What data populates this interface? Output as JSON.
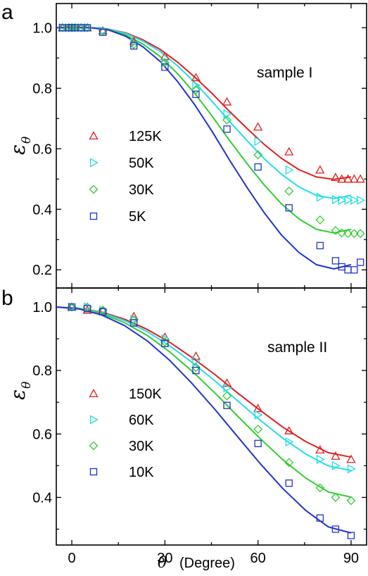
{
  "chart_data": {
    "type": "scatter",
    "xlabel_symbol": "θ",
    "xlabel_unit": "(Degree)",
    "ylabel_symbol": "ε",
    "ylabel_sub": "θ",
    "xlim": [
      -5,
      95
    ],
    "xticks": [
      0,
      30,
      60,
      90
    ],
    "xtick_labels": [
      "0",
      "30",
      "60",
      "90"
    ],
    "panels": [
      {
        "letter": "a",
        "sample_label": "sample I",
        "ylim": [
          0.14,
          1.08
        ],
        "yticks": [
          0.2,
          0.4,
          0.6,
          0.8,
          1.0
        ],
        "ytick_labels": [
          "0.2",
          "0.4",
          "0.6",
          "0.8",
          "1.0"
        ],
        "series": [
          {
            "name": "125K",
            "marker": "triangle-up",
            "color": "#e02020",
            "x": [
              -3,
              -1,
              0,
              1,
              3,
              5,
              10,
              20,
              30,
              40,
              50,
              60,
              70,
              80,
              85,
              87,
              89,
              91,
              93
            ],
            "y": [
              1.0,
              1.0,
              1.0,
              1.0,
              1.0,
              1.0,
              0.99,
              0.955,
              0.905,
              0.835,
              0.755,
              0.672,
              0.59,
              0.53,
              0.505,
              0.5,
              0.5,
              0.5,
              0.5
            ],
            "fit": [
              1.0,
              1.0,
              1.0,
              0.9955,
              0.983,
              0.96,
              0.928,
              0.886,
              0.836,
              0.782,
              0.723,
              0.667,
              0.614,
              0.568,
              0.531,
              0.507,
              0.499,
              0.507
            ]
          },
          {
            "name": "50K",
            "marker": "triangle-right",
            "color": "#22dde8",
            "x": [
              -3,
              -1,
              0,
              1,
              3,
              5,
              10,
              20,
              30,
              40,
              50,
              60,
              70,
              80,
              85,
              87,
              89,
              91,
              93
            ],
            "y": [
              1.0,
              1.0,
              1.0,
              1.0,
              1.0,
              1.0,
              0.99,
              0.95,
              0.885,
              0.81,
              0.715,
              0.625,
              0.53,
              0.44,
              0.432,
              0.43,
              0.43,
              0.43,
              0.43
            ],
            "fit": [
              1.0,
              1.0,
              1.0,
              0.995,
              0.981,
              0.956,
              0.921,
              0.874,
              0.818,
              0.756,
              0.69,
              0.627,
              0.567,
              0.515,
              0.474,
              0.446,
              0.436,
              0.446
            ]
          },
          {
            "name": "30K",
            "marker": "diamond",
            "color": "#33cc33",
            "x": [
              -3,
              -1,
              0,
              1,
              3,
              5,
              10,
              20,
              30,
              40,
              50,
              60,
              70,
              80,
              85,
              87,
              89,
              91,
              93
            ],
            "y": [
              1.0,
              1.0,
              1.0,
              1.0,
              1.0,
              1.0,
              0.99,
              0.945,
              0.885,
              0.795,
              0.695,
              0.58,
              0.46,
              0.365,
              0.33,
              0.322,
              0.32,
              0.32,
              0.32
            ],
            "fit": [
              1.0,
              1.0,
              1.0,
              0.994,
              0.976,
              0.946,
              0.904,
              0.848,
              0.782,
              0.707,
              0.627,
              0.551,
              0.48,
              0.417,
              0.368,
              0.334,
              0.322,
              0.334
            ]
          },
          {
            "name": "5K",
            "marker": "square",
            "color": "#2233cc",
            "x": [
              -3,
              -1,
              0,
              1,
              3,
              5,
              10,
              20,
              30,
              40,
              50,
              60,
              70,
              80,
              85,
              87,
              89,
              91,
              93
            ],
            "y": [
              1.0,
              1.0,
              1.0,
              1.0,
              1.0,
              1.0,
              0.985,
              0.94,
              0.87,
              0.78,
              0.665,
              0.54,
              0.405,
              0.28,
              0.23,
              0.21,
              0.2,
              0.2,
              0.225
            ],
            "fit": [
              1.0,
              1.0,
              1.0,
              0.993,
              0.972,
              0.937,
              0.888,
              0.822,
              0.744,
              0.656,
              0.562,
              0.472,
              0.388,
              0.314,
              0.257,
              0.217,
              0.203,
              0.217
            ]
          }
        ],
        "fit_x": [
          -5,
          0,
          5,
          10,
          15,
          20,
          25,
          30,
          35,
          40,
          45,
          50,
          55,
          60,
          65,
          70,
          75,
          80
        ],
        "legend": [
          "125K",
          "50K",
          "30K",
          "5K"
        ]
      },
      {
        "letter": "b",
        "sample_label": "sample II",
        "ylim": [
          0.25,
          1.06
        ],
        "yticks": [
          0.4,
          0.6,
          0.8,
          1.0
        ],
        "ytick_labels": [
          "0.4",
          "0.6",
          "0.8",
          "1.0"
        ],
        "series": [
          {
            "name": "150K",
            "marker": "triangle-up",
            "color": "#e02020",
            "x": [
              0,
              5,
              10,
              20,
              30,
              40,
              50,
              60,
              70,
              80,
              85,
              90
            ],
            "y": [
              1.0,
              0.99,
              0.99,
              0.97,
              0.905,
              0.845,
              0.76,
              0.68,
              0.61,
              0.55,
              0.53,
              0.52
            ],
            "fit": [
              1.0,
              0.996,
              0.984,
              0.962,
              0.93,
              0.889,
              0.84,
              0.787,
              0.729,
              0.674,
              0.621,
              0.576,
              0.541,
              0.527
            ]
          },
          {
            "name": "60K",
            "marker": "triangle-right",
            "color": "#22dde8",
            "x": [
              0,
              5,
              10,
              20,
              30,
              40,
              50,
              60,
              70,
              80,
              85,
              90
            ],
            "y": [
              1.0,
              1.0,
              0.99,
              0.96,
              0.9,
              0.83,
              0.745,
              0.66,
              0.575,
              0.52,
              0.5,
              0.49
            ],
            "fit": [
              1.0,
              0.996,
              0.982,
              0.958,
              0.923,
              0.878,
              0.825,
              0.767,
              0.704,
              0.643,
              0.586,
              0.537,
              0.499,
              0.485
            ]
          },
          {
            "name": "30K",
            "marker": "diamond",
            "color": "#33cc33",
            "x": [
              0,
              5,
              10,
              20,
              30,
              40,
              50,
              60,
              70,
              80,
              85,
              90
            ],
            "y": [
              1.0,
              1.0,
              0.99,
              0.96,
              0.89,
              0.81,
              0.72,
              0.615,
              0.51,
              0.43,
              0.4,
              0.39
            ],
            "fit": [
              1.0,
              0.995,
              0.979,
              0.951,
              0.911,
              0.859,
              0.797,
              0.729,
              0.656,
              0.585,
              0.518,
              0.461,
              0.417,
              0.401
            ]
          },
          {
            "name": "10K",
            "marker": "square",
            "color": "#2233cc",
            "x": [
              0,
              5,
              10,
              20,
              30,
              40,
              50,
              60,
              70,
              80,
              85,
              90
            ],
            "y": [
              1.0,
              0.995,
              0.985,
              0.95,
              0.885,
              0.8,
              0.69,
              0.57,
              0.445,
              0.335,
              0.3,
              0.28
            ],
            "fit": [
              1.0,
              0.994,
              0.975,
              0.942,
              0.894,
              0.832,
              0.758,
              0.677,
              0.591,
              0.506,
              0.427,
              0.359,
              0.307,
              0.288
            ]
          }
        ],
        "fit_x": [
          -5,
          0,
          5,
          10,
          15,
          20,
          25,
          30,
          35,
          40,
          45,
          50,
          55,
          60
        ],
        "legend": [
          "150K",
          "60K",
          "30K",
          "10K"
        ]
      }
    ]
  }
}
